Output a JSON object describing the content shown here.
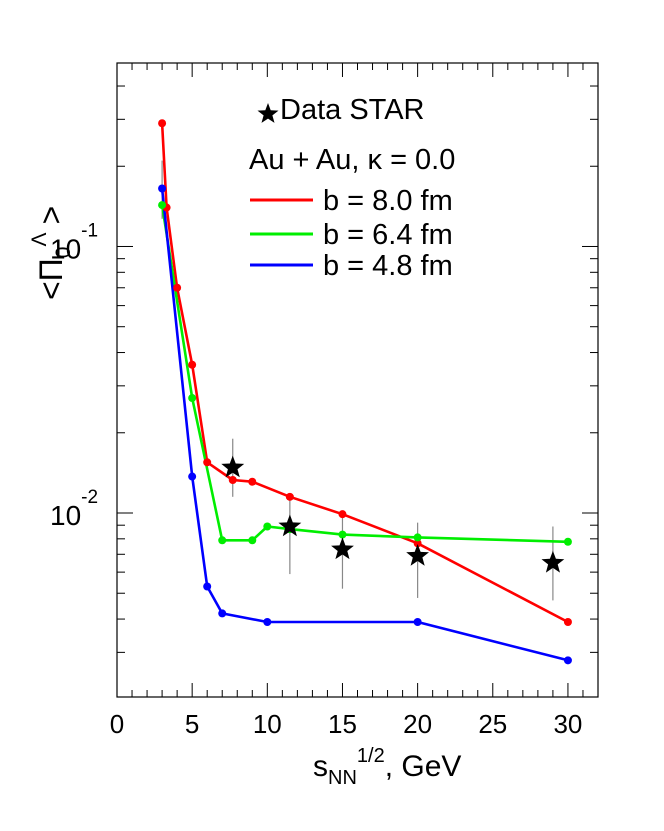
{
  "chart_data": {
    "type": "line",
    "xlabel_main": "s",
    "xlabel_sub": "NN",
    "xlabel_sup": "1/2",
    "xlabel_tail": ", GeV",
    "ylabel_open": "<",
    "ylabel_symbol": "Π",
    "ylabel_sub": "0",
    "ylabel_sup": "Λ",
    "ylabel_close": ">",
    "xlim": [
      0,
      32
    ],
    "ylim": [
      0.00204,
      0.488
    ],
    "y_scale": "log",
    "x_ticks": [
      "0",
      "5",
      "10",
      "15",
      "20",
      "25",
      "30"
    ],
    "y_ticks": [
      {
        "base": "10",
        "exp": "-1",
        "value": 0.1
      },
      {
        "base": "10",
        "exp": "-2",
        "value": 0.01
      }
    ],
    "annotation_lines": [
      "Au + Au, κ = 0.0"
    ],
    "legend_position": "top-right",
    "series": [
      {
        "name": "b = 8.0 fm",
        "color": "#ff0000",
        "x": [
          3,
          3.3,
          4,
          5,
          6,
          7.7,
          9,
          11.5,
          15,
          20,
          30
        ],
        "y": [
          0.29,
          0.14,
          0.07,
          0.036,
          0.0155,
          0.0133,
          0.0131,
          0.0115,
          0.0099,
          0.0077,
          0.0039
        ]
      },
      {
        "name": "b = 6.4 fm",
        "color": "#00ee00",
        "x": [
          3,
          5,
          7,
          9,
          10,
          11.5,
          15,
          20,
          30
        ],
        "y": [
          0.143,
          0.027,
          0.0079,
          0.0079,
          0.0089,
          0.0087,
          0.0083,
          0.0081,
          0.0078
        ]
      },
      {
        "name": "b = 4.8 fm",
        "color": "#0000ff",
        "x": [
          3,
          5,
          6,
          7,
          10,
          20,
          30
        ],
        "y": [
          0.165,
          0.0137,
          0.0053,
          0.0042,
          0.0039,
          0.0039,
          0.0028
        ]
      }
    ],
    "data_series": {
      "name": "Data STAR",
      "marker": "star",
      "x": [
        3,
        7.7,
        11.5,
        15,
        20,
        29
      ],
      "y": [
        0.165,
        0.0148,
        0.0089,
        0.0073,
        0.0069,
        0.0065
      ],
      "err_low": [
        0.127,
        0.0115,
        0.0059,
        0.0052,
        0.0048,
        0.0047
      ],
      "err_high": [
        0.21,
        0.019,
        0.0117,
        0.0099,
        0.0092,
        0.0089
      ]
    }
  }
}
